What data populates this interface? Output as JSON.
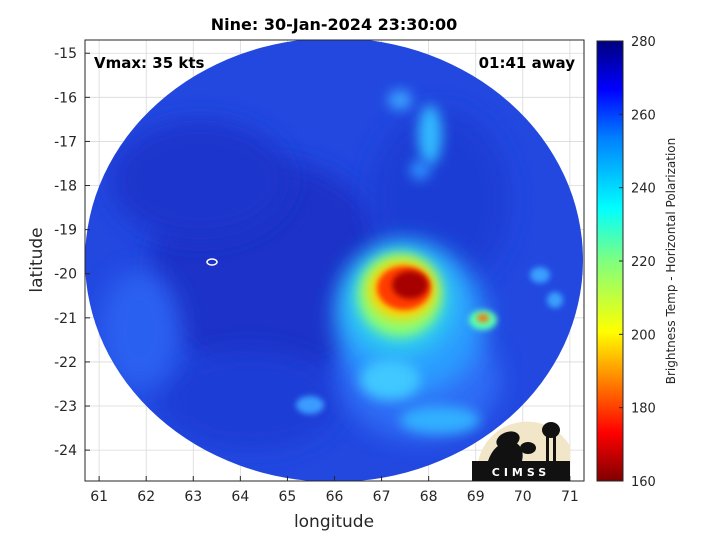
{
  "chart_data": {
    "type": "heatmap",
    "title": "Nine: 30-Jan-2024 23:30:00",
    "xlabel": "longitude",
    "ylabel": "latitude",
    "xlim": [
      60.7,
      71.3
    ],
    "ylim": [
      -24.7,
      -14.7
    ],
    "xticks": [
      "61",
      "62",
      "63",
      "64",
      "65",
      "66",
      "67",
      "68",
      "69",
      "70",
      "71"
    ],
    "yticks": [
      "-15",
      "-16",
      "-17",
      "-18",
      "-19",
      "-20",
      "-21",
      "-22",
      "-23",
      "-24"
    ],
    "grid": true,
    "colorbar": {
      "label": "Brightness Temp - Horizontal Polarization",
      "range": [
        160,
        280
      ],
      "ticks": [
        "160",
        "180",
        "200",
        "220",
        "240",
        "260",
        "280"
      ],
      "colormap": "jet"
    },
    "annotations": {
      "vmax": "Vmax: 35 kts",
      "time_away": "01:41 away"
    },
    "swath_center": [
      66.1,
      -19.7
    ],
    "features": [
      {
        "kind": "cold-core",
        "lon": 67.6,
        "lat": -20.3,
        "temp": 165
      },
      {
        "kind": "cold-cell",
        "lon": 69.1,
        "lat": -21.0,
        "temp": 195
      },
      {
        "kind": "center-marker",
        "lon": 63.4,
        "lat": -19.8
      }
    ]
  },
  "logo": {
    "text": "CIMSS",
    "colors": {
      "sky": "#f2e6c8",
      "ground": "#111111"
    }
  },
  "colors": {
    "background": "#1f3fd8",
    "warm_field": "#2a50e8",
    "grid": "#d9d9d9"
  }
}
